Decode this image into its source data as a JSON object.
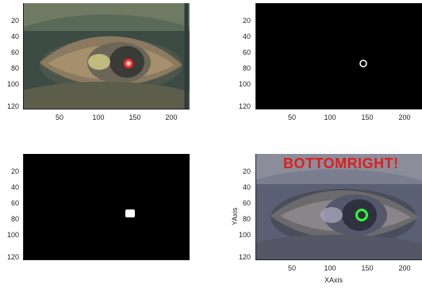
{
  "colors": {
    "black": "#000000",
    "red_detection": "#ff2a2a",
    "green_detection": "#33ff33",
    "overlay_text": "#e11d1d"
  },
  "axes": {
    "y_ticks": [
      "20",
      "40",
      "60",
      "80",
      "100",
      "120"
    ],
    "x_ticks": [
      "50",
      "100",
      "150",
      "200"
    ]
  },
  "panels": {
    "bottom_right": {
      "overlay": "BOTTOMRIGHT!",
      "xlabel": "XAxis",
      "ylabel": "YAxis"
    }
  }
}
